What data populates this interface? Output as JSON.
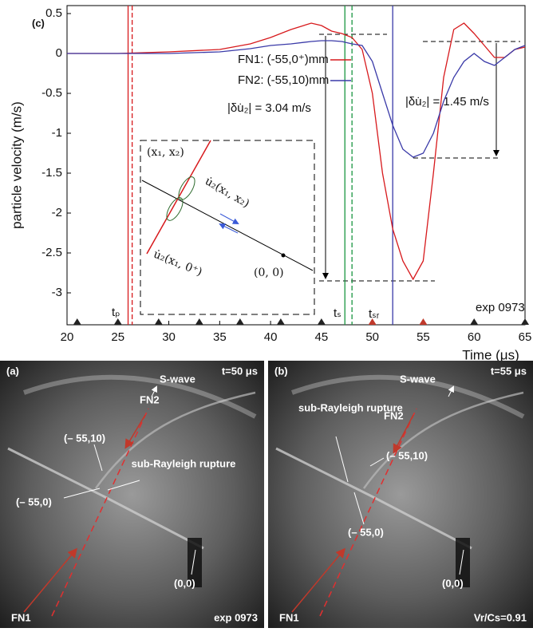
{
  "chart_data": {
    "type": "line",
    "panel_label": "(c)",
    "x_label": "Time (μs)",
    "y_label": "particle velocity (m/s)",
    "x": [
      20,
      25,
      30,
      35,
      38,
      40,
      42,
      44,
      45,
      46,
      47,
      48,
      49,
      50,
      51,
      52,
      53,
      54,
      55,
      56,
      57,
      58,
      59,
      60,
      61,
      62,
      63,
      64,
      65
    ],
    "series": [
      {
        "name": "FN1: (-55,0⁺)mm",
        "color": "#d7191c",
        "values": [
          0,
          0,
          0.02,
          0.05,
          0.12,
          0.2,
          0.3,
          0.38,
          0.35,
          0.28,
          0.25,
          0.2,
          0.05,
          -0.5,
          -1.5,
          -2.2,
          -2.6,
          -2.83,
          -2.6,
          -1.5,
          -0.3,
          0.3,
          0.38,
          0.25,
          0.1,
          -0.05,
          -0.05,
          0.05,
          0.08
        ]
      },
      {
        "name": "FN2: (-55,10)mm",
        "color": "#3a3aa8",
        "values": [
          0,
          0,
          0,
          0.02,
          0.06,
          0.1,
          0.12,
          0.15,
          0.16,
          0.16,
          0.15,
          0.12,
          0.1,
          -0.1,
          -0.5,
          -0.9,
          -1.2,
          -1.3,
          -1.25,
          -1.0,
          -0.6,
          -0.3,
          -0.1,
          0,
          -0.1,
          -0.15,
          -0.05,
          0.05,
          0.1
        ]
      }
    ],
    "xlim": [
      20,
      65
    ],
    "ylim": [
      -3.4,
      0.6
    ],
    "xticks": [
      20,
      25,
      30,
      35,
      40,
      45,
      50,
      55,
      60,
      65
    ],
    "yticks": [
      0.5,
      0,
      -0.5,
      -1,
      -1.5,
      -2,
      -2.5,
      -3
    ],
    "vlines": [
      {
        "x": 26,
        "color": "#d7191c",
        "dashed": false
      },
      {
        "x": 26.4,
        "color": "#d7191c",
        "dashed": true
      },
      {
        "x": 47.3,
        "color": "#1a9641",
        "dashed": false
      },
      {
        "x": 48,
        "color": "#1a9641",
        "dashed": true
      },
      {
        "x": 52,
        "color": "#3a3aa8",
        "dashed": false
      }
    ],
    "markers": [
      21,
      25,
      29,
      33,
      37,
      41,
      45,
      50,
      55,
      60,
      65
    ],
    "marker_colors": [
      "#222",
      "#222",
      "#222",
      "#222",
      "#222",
      "#222",
      "#222",
      "#c0392b",
      "#c0392b",
      "#222",
      "#222"
    ],
    "annotations": {
      "tp": "tₚ",
      "ts": "tₛ",
      "tsr": "tₛᵣ",
      "exp": "exp 0973",
      "jump1": "|δu̇₂| = 3.04 m/s",
      "jump2": "|δu̇₂| = 1.45 m/s"
    },
    "inset": {
      "point": "(x₁, x₂)",
      "u_top": "u̇₂(x₁, x₂)",
      "u_bottom": "u̇₂(x₁, 0⁺)",
      "origin": "(0, 0)"
    }
  },
  "panels": [
    {
      "label": "(a)",
      "time": "t=50 μs",
      "s_wave": "S-wave",
      "fn2": "FN2",
      "p10": "(– 55,10)",
      "rupture": "sub-Rayleigh rupture",
      "p0": "(– 55,0)",
      "origin": "(0,0)",
      "fn1": "FN1",
      "corner": "exp 0973"
    },
    {
      "label": "(b)",
      "time": "t=55 μs",
      "s_wave": "S-wave",
      "fn2": "FN2",
      "p10": "(– 55,10)",
      "rupture": "sub-Rayleigh rupture",
      "p0": "(– 55,0)",
      "origin": "(0,0)",
      "fn1": "FN1",
      "corner": "Vr/Cs=0.91"
    }
  ]
}
